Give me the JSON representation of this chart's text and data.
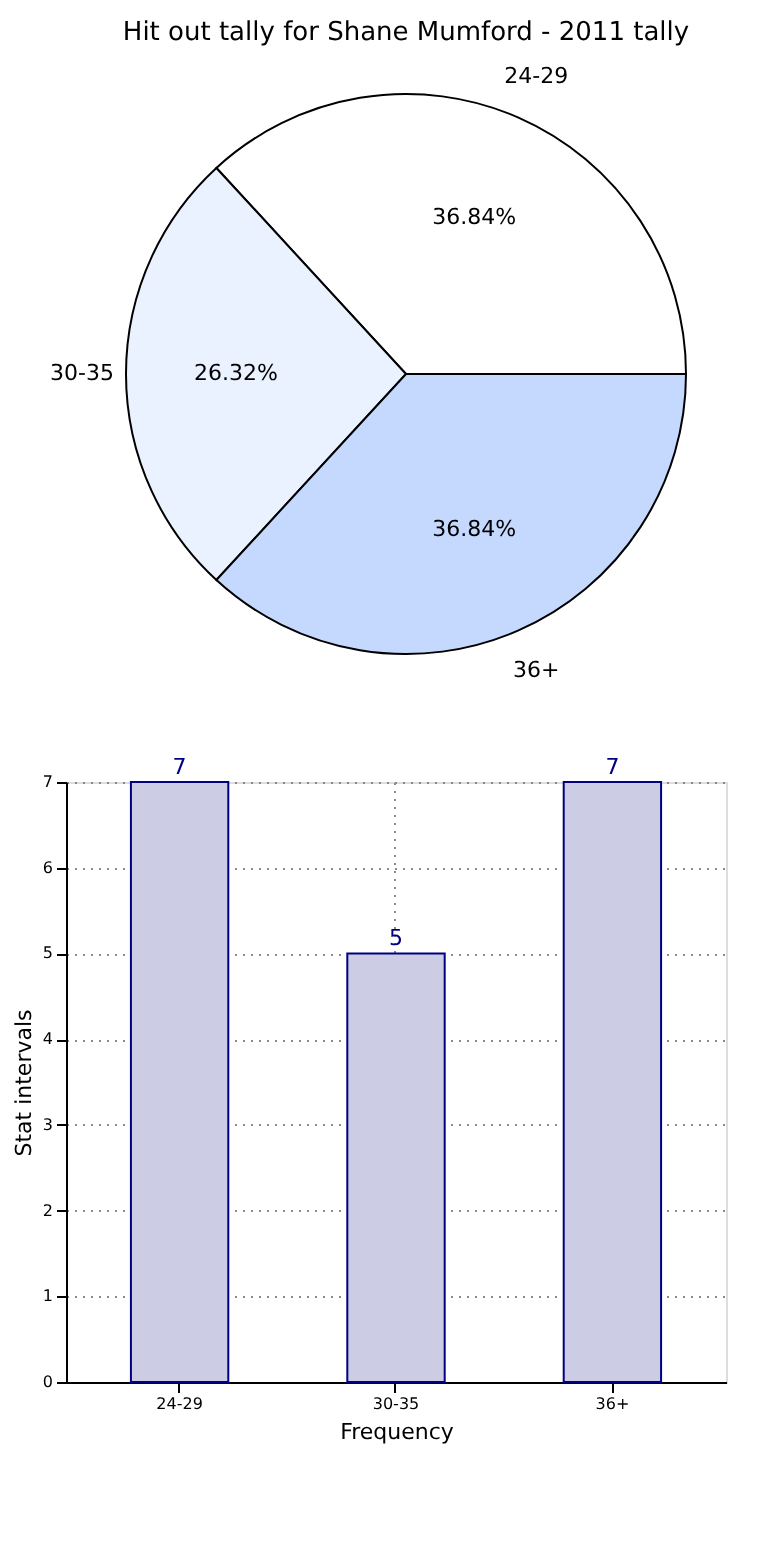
{
  "chart_data": [
    {
      "type": "pie",
      "title": "Hit out tally for Shane Mumford - 2011 tally",
      "categories": [
        "24-29",
        "30-35",
        "36+"
      ],
      "values": [
        36.84,
        26.32,
        36.84
      ],
      "colors": [
        "#ffffff",
        "#eaf1ff",
        "#c5d9ff"
      ],
      "value_labels": [
        "36.84%",
        "26.32%",
        "36.84%"
      ]
    },
    {
      "type": "bar",
      "categories": [
        "24-29",
        "30-35",
        "36+"
      ],
      "values": [
        7,
        5,
        7
      ],
      "color": "#cccce4",
      "xlabel": "Frequency",
      "ylabel": "Stat intervals",
      "ylim": [
        0,
        7
      ],
      "yticks": [
        0,
        1,
        2,
        3,
        4,
        5,
        6,
        7
      ],
      "grid": true,
      "data_labels": true
    }
  ]
}
